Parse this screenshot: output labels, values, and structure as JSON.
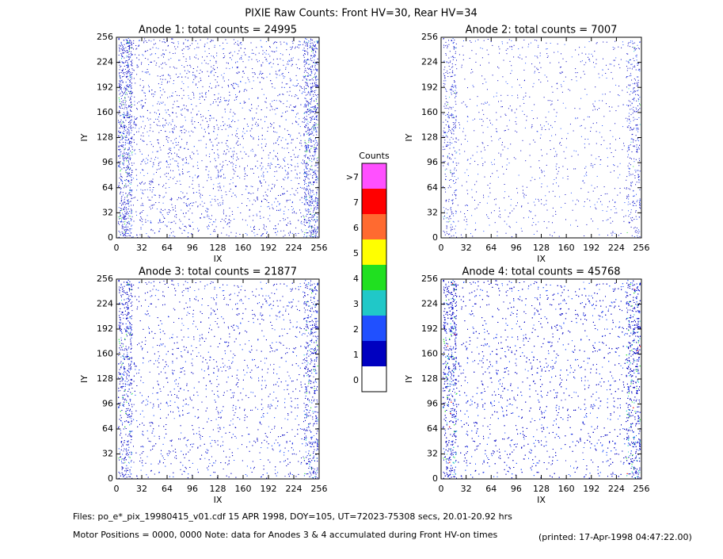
{
  "chart_data": {
    "type": "pixel-map",
    "title": "PIXIE Raw Counts:  Front HV=30, Rear HV=34",
    "panels": [
      {
        "title": "Anode 1: total counts = 24995",
        "xlabel": "IX",
        "ylabel": "IY",
        "xlim": [
          0,
          256
        ],
        "ylim": [
          0,
          256
        ],
        "xticks": [
          0,
          32,
          64,
          96,
          128,
          160,
          192,
          224,
          256
        ],
        "yticks": [
          0,
          32,
          64,
          96,
          128,
          160,
          192,
          224,
          256
        ]
      },
      {
        "title": "Anode 2: total counts = 7007",
        "xlabel": "IX",
        "ylabel": "IY",
        "xlim": [
          0,
          256
        ],
        "ylim": [
          0,
          256
        ],
        "xticks": [
          0,
          32,
          64,
          96,
          128,
          160,
          192,
          224,
          256
        ],
        "yticks": [
          0,
          32,
          64,
          96,
          128,
          160,
          192,
          224,
          256
        ]
      },
      {
        "title": "Anode 3: total counts = 21877",
        "xlabel": "IX",
        "ylabel": "IY",
        "xlim": [
          0,
          256
        ],
        "ylim": [
          0,
          256
        ],
        "xticks": [
          0,
          32,
          64,
          96,
          128,
          160,
          192,
          224,
          256
        ],
        "yticks": [
          0,
          32,
          64,
          96,
          128,
          160,
          192,
          224,
          256
        ]
      },
      {
        "title": "Anode 4: total counts = 45768",
        "xlabel": "IX",
        "ylabel": "IY",
        "xlim": [
          0,
          256
        ],
        "ylim": [
          0,
          256
        ],
        "xticks": [
          0,
          32,
          64,
          96,
          128,
          160,
          192,
          224,
          256
        ],
        "yticks": [
          0,
          32,
          64,
          96,
          128,
          160,
          192,
          224,
          256
        ]
      }
    ],
    "colorbar": {
      "title": "Counts",
      "levels": [
        ">7",
        7,
        6,
        5,
        4,
        3,
        2,
        1,
        0
      ],
      "colors": [
        "#ff50ff",
        "#ff0000",
        "#ff6a30",
        "#ffff00",
        "#20e020",
        "#20c8c8",
        "#2050ff",
        "#0000c0",
        "#ffffff"
      ]
    },
    "footer": [
      "Files: po_e*_pix_19980415_v01.cdf    15 APR 1998, DOY=105, UT=72023-75308 secs, 20.01-20.92 hrs",
      "Motor Positions = 0000, 0000    Note: data for Anodes 3 & 4 accumulated during Front HV-on times"
    ],
    "printed": "(printed: 17-Apr-1998 04:47:22.00)"
  }
}
